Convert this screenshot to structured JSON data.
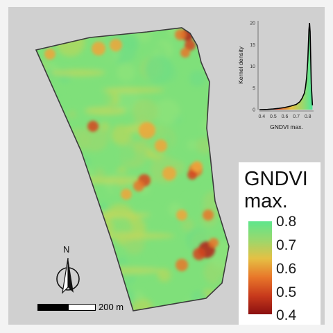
{
  "map": {
    "background": "#d0d0d0",
    "field_outline_color": "#3a3a3a",
    "base_colors": [
      "#7fe07a",
      "#8fe37a",
      "#6fdd84",
      "#9ad86d",
      "#b7d75b"
    ],
    "hotspot_colors": [
      "#f0a43a",
      "#e8772a",
      "#d4451e",
      "#b3221a"
    ]
  },
  "inset_chart": {
    "chart_data": {
      "type": "area",
      "xlabel": "GNDVI max.",
      "ylabel": "Kernel density",
      "x_ticks": [
        "0.4",
        "0.5",
        "0.6",
        "0.7",
        "0.8"
      ],
      "y_ticks": [
        "0",
        "5",
        "10",
        "15",
        "20"
      ],
      "xlim": [
        0.38,
        0.85
      ],
      "ylim": [
        0,
        20.5
      ],
      "x": [
        0.38,
        0.45,
        0.5,
        0.55,
        0.6,
        0.65,
        0.7,
        0.73,
        0.75,
        0.77,
        0.78,
        0.79,
        0.8,
        0.805,
        0.81,
        0.815,
        0.82,
        0.825,
        0.83,
        0.84
      ],
      "density": [
        0.0,
        0.05,
        0.15,
        0.3,
        0.5,
        0.8,
        1.2,
        1.8,
        2.6,
        3.8,
        5.2,
        7.5,
        11.5,
        15.0,
        18.5,
        20.0,
        18.0,
        12.0,
        6.0,
        1.0
      ]
    }
  },
  "legend": {
    "title_line1": "GNDVI",
    "title_line2": "max.",
    "ticks": [
      "0.8",
      "0.7",
      "0.6",
      "0.5",
      "0.4"
    ],
    "colors": [
      "#5ee68c",
      "#9ad86d",
      "#e5c044",
      "#e8772a",
      "#c83a1c",
      "#8b1010"
    ]
  },
  "scalebar": {
    "label": "200 m"
  },
  "north_arrow": {
    "letter": "N"
  }
}
